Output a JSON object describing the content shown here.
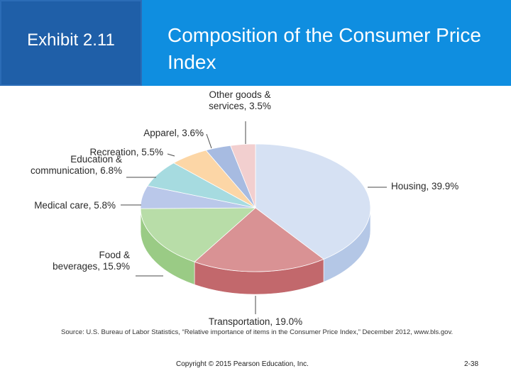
{
  "header": {
    "exhibit_label": "Exhibit 2.11",
    "title": "Composition of the Consumer Price Index",
    "left_color": "#1f5fa8",
    "right_color": "#0f8ee0"
  },
  "chart_data": {
    "type": "pie",
    "title": "",
    "slices": [
      {
        "label": "Housing, 39.9%",
        "value": 39.9,
        "color": "#d6e1f3",
        "side": "#b4c7e6"
      },
      {
        "label": "Transportation, 19.0%",
        "value": 19.0,
        "color": "#d99294",
        "side": "#c2686c"
      },
      {
        "label": "Food &\nbeverages, 15.9%",
        "value": 15.9,
        "color": "#b8dda8",
        "side": "#9acb85"
      },
      {
        "label": "Medical care, 5.8%",
        "value": 5.8,
        "color": "#bac8ea",
        "side": "#97a9d8"
      },
      {
        "label": "Education &\ncommunication, 6.8%",
        "value": 6.8,
        "color": "#a6dbe0",
        "side": "#7fc5cc"
      },
      {
        "label": "Recreation, 5.5%",
        "value": 5.5,
        "color": "#fcd6a6",
        "side": "#ebb87a"
      },
      {
        "label": "Apparel, 3.6%",
        "value": 3.6,
        "color": "#a7bbe1",
        "side": "#8198cc"
      },
      {
        "label": "Other goods &\nservices, 3.5%",
        "value": 3.5,
        "color": "#f2cfcf",
        "side": "#dbaaaa"
      }
    ]
  },
  "source": "Source: U.S. Bureau of Labor Statistics, “Relative importance of items in the Consumer Price Index,” December 2012, www.bls.gov.",
  "footer": {
    "copyright": "Copyright © 2015 Pearson Education, Inc.",
    "page": "2-38"
  }
}
